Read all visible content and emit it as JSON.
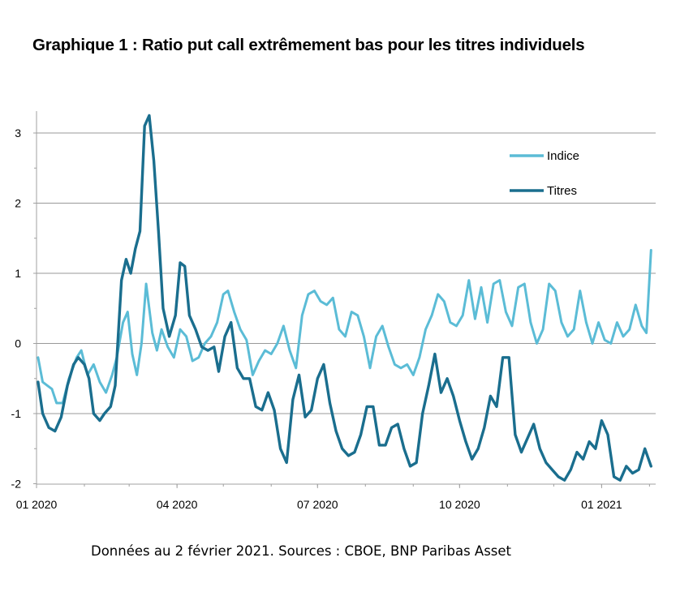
{
  "title": "Graphique 1 : Ratio put call extrêmement bas pour les titres individuels",
  "source": "Données au 2 février 2021. Sources : CBOE, BNP Paribas Asset",
  "colors": {
    "indice": "#5bbcd6",
    "titres": "#1a6e8e",
    "grid": "#999999",
    "axis": "#a0a0a0"
  },
  "chart_data": {
    "type": "line",
    "title": "Graphique 1 : Ratio put call extrêmement bas pour les titres individuels",
    "xlabel": "",
    "ylabel": "",
    "ylim": [
      -2,
      3.3
    ],
    "yticks": [
      3,
      2,
      1,
      0,
      -1,
      -2
    ],
    "ytick_labels": [
      "3",
      "2",
      "1",
      "0",
      "-1",
      "-2"
    ],
    "xlim": [
      "2020-01-01",
      "2021-02-05"
    ],
    "xticks": [
      "2020-01-01",
      "2020-04-01",
      "2020-07-01",
      "2020-10-01",
      "2021-01-01"
    ],
    "xtick_labels": [
      "01 2020",
      "04 2020",
      "07 2020",
      "10 2020",
      "01 2021"
    ],
    "grid": "horizontal",
    "legend": "upper right",
    "series": [
      {
        "name": "Indice",
        "color": "#5bbcd6",
        "points": [
          [
            "2020-01-02",
            -0.2
          ],
          [
            "2020-01-05",
            -0.55
          ],
          [
            "2020-01-08",
            -0.6
          ],
          [
            "2020-01-11",
            -0.65
          ],
          [
            "2020-01-14",
            -0.85
          ],
          [
            "2020-01-18",
            -0.85
          ],
          [
            "2020-01-22",
            -0.5
          ],
          [
            "2020-01-27",
            -0.2
          ],
          [
            "2020-01-30",
            -0.1
          ],
          [
            "2020-02-03",
            -0.45
          ],
          [
            "2020-02-07",
            -0.3
          ],
          [
            "2020-02-11",
            -0.55
          ],
          [
            "2020-02-15",
            -0.7
          ],
          [
            "2020-02-19",
            -0.45
          ],
          [
            "2020-02-22",
            -0.2
          ],
          [
            "2020-02-26",
            0.3
          ],
          [
            "2020-02-29",
            0.45
          ],
          [
            "2020-03-03",
            -0.15
          ],
          [
            "2020-03-06",
            -0.45
          ],
          [
            "2020-03-09",
            0.0
          ],
          [
            "2020-03-12",
            0.85
          ],
          [
            "2020-03-16",
            0.15
          ],
          [
            "2020-03-19",
            -0.1
          ],
          [
            "2020-03-22",
            0.2
          ],
          [
            "2020-03-26",
            -0.05
          ],
          [
            "2020-03-30",
            -0.2
          ],
          [
            "2020-04-03",
            0.2
          ],
          [
            "2020-04-07",
            0.1
          ],
          [
            "2020-04-11",
            -0.25
          ],
          [
            "2020-04-15",
            -0.2
          ],
          [
            "2020-04-19",
            0.0
          ],
          [
            "2020-04-23",
            0.1
          ],
          [
            "2020-04-27",
            0.3
          ],
          [
            "2020-05-01",
            0.7
          ],
          [
            "2020-05-04",
            0.75
          ],
          [
            "2020-05-08",
            0.45
          ],
          [
            "2020-05-12",
            0.2
          ],
          [
            "2020-05-16",
            0.05
          ],
          [
            "2020-05-20",
            -0.45
          ],
          [
            "2020-05-24",
            -0.25
          ],
          [
            "2020-05-28",
            -0.1
          ],
          [
            "2020-06-01",
            -0.15
          ],
          [
            "2020-06-05",
            0.0
          ],
          [
            "2020-06-09",
            0.25
          ],
          [
            "2020-06-13",
            -0.1
          ],
          [
            "2020-06-17",
            -0.35
          ],
          [
            "2020-06-21",
            0.4
          ],
          [
            "2020-06-25",
            0.7
          ],
          [
            "2020-06-29",
            0.75
          ],
          [
            "2020-07-03",
            0.6
          ],
          [
            "2020-07-07",
            0.55
          ],
          [
            "2020-07-11",
            0.65
          ],
          [
            "2020-07-15",
            0.2
          ],
          [
            "2020-07-19",
            0.1
          ],
          [
            "2020-07-23",
            0.45
          ],
          [
            "2020-07-27",
            0.4
          ],
          [
            "2020-07-31",
            0.1
          ],
          [
            "2020-08-04",
            -0.35
          ],
          [
            "2020-08-08",
            0.1
          ],
          [
            "2020-08-12",
            0.25
          ],
          [
            "2020-08-16",
            -0.05
          ],
          [
            "2020-08-20",
            -0.3
          ],
          [
            "2020-08-24",
            -0.35
          ],
          [
            "2020-08-28",
            -0.3
          ],
          [
            "2020-09-01",
            -0.45
          ],
          [
            "2020-09-05",
            -0.2
          ],
          [
            "2020-09-09",
            0.2
          ],
          [
            "2020-09-13",
            0.4
          ],
          [
            "2020-09-17",
            0.7
          ],
          [
            "2020-09-21",
            0.6
          ],
          [
            "2020-09-25",
            0.3
          ],
          [
            "2020-09-29",
            0.25
          ],
          [
            "2020-10-03",
            0.4
          ],
          [
            "2020-10-07",
            0.9
          ],
          [
            "2020-10-11",
            0.35
          ],
          [
            "2020-10-15",
            0.8
          ],
          [
            "2020-10-19",
            0.3
          ],
          [
            "2020-10-23",
            0.85
          ],
          [
            "2020-10-27",
            0.9
          ],
          [
            "2020-10-31",
            0.45
          ],
          [
            "2020-11-04",
            0.25
          ],
          [
            "2020-11-08",
            0.8
          ],
          [
            "2020-11-12",
            0.85
          ],
          [
            "2020-11-16",
            0.3
          ],
          [
            "2020-11-20",
            0.0
          ],
          [
            "2020-11-24",
            0.2
          ],
          [
            "2020-11-28",
            0.85
          ],
          [
            "2020-12-02",
            0.75
          ],
          [
            "2020-12-06",
            0.3
          ],
          [
            "2020-12-10",
            0.1
          ],
          [
            "2020-12-14",
            0.2
          ],
          [
            "2020-12-18",
            0.75
          ],
          [
            "2020-12-22",
            0.3
          ],
          [
            "2020-12-26",
            0.0
          ],
          [
            "2020-12-30",
            0.3
          ],
          [
            "2021-01-03",
            0.05
          ],
          [
            "2021-01-07",
            0.0
          ],
          [
            "2021-01-11",
            0.3
          ],
          [
            "2021-01-15",
            0.1
          ],
          [
            "2021-01-19",
            0.2
          ],
          [
            "2021-01-23",
            0.55
          ],
          [
            "2021-01-27",
            0.25
          ],
          [
            "2021-01-30",
            0.15
          ],
          [
            "2021-02-02",
            1.33
          ]
        ]
      },
      {
        "name": "Titres",
        "color": "#1a6e8e",
        "points": [
          [
            "2020-01-02",
            -0.55
          ],
          [
            "2020-01-05",
            -1.0
          ],
          [
            "2020-01-09",
            -1.2
          ],
          [
            "2020-01-13",
            -1.25
          ],
          [
            "2020-01-17",
            -1.05
          ],
          [
            "2020-01-21",
            -0.6
          ],
          [
            "2020-01-25",
            -0.3
          ],
          [
            "2020-01-28",
            -0.2
          ],
          [
            "2020-02-01",
            -0.3
          ],
          [
            "2020-02-04",
            -0.5
          ],
          [
            "2020-02-07",
            -1.0
          ],
          [
            "2020-02-11",
            -1.1
          ],
          [
            "2020-02-14",
            -1.0
          ],
          [
            "2020-02-18",
            -0.9
          ],
          [
            "2020-02-21",
            -0.6
          ],
          [
            "2020-02-25",
            0.9
          ],
          [
            "2020-02-28",
            1.2
          ],
          [
            "2020-03-02",
            1.0
          ],
          [
            "2020-03-05",
            1.35
          ],
          [
            "2020-03-08",
            1.6
          ],
          [
            "2020-03-11",
            3.1
          ],
          [
            "2020-03-14",
            3.25
          ],
          [
            "2020-03-17",
            2.6
          ],
          [
            "2020-03-20",
            1.6
          ],
          [
            "2020-03-23",
            0.5
          ],
          [
            "2020-03-27",
            0.1
          ],
          [
            "2020-03-31",
            0.4
          ],
          [
            "2020-04-03",
            1.15
          ],
          [
            "2020-04-06",
            1.1
          ],
          [
            "2020-04-09",
            0.4
          ],
          [
            "2020-04-13",
            0.2
          ],
          [
            "2020-04-17",
            -0.05
          ],
          [
            "2020-04-21",
            -0.1
          ],
          [
            "2020-04-25",
            -0.05
          ],
          [
            "2020-04-28",
            -0.4
          ],
          [
            "2020-05-02",
            0.1
          ],
          [
            "2020-05-06",
            0.3
          ],
          [
            "2020-05-10",
            -0.35
          ],
          [
            "2020-05-14",
            -0.5
          ],
          [
            "2020-05-18",
            -0.5
          ],
          [
            "2020-05-22",
            -0.9
          ],
          [
            "2020-05-26",
            -0.95
          ],
          [
            "2020-05-30",
            -0.7
          ],
          [
            "2020-06-03",
            -0.95
          ],
          [
            "2020-06-07",
            -1.5
          ],
          [
            "2020-06-11",
            -1.7
          ],
          [
            "2020-06-15",
            -0.8
          ],
          [
            "2020-06-19",
            -0.45
          ],
          [
            "2020-06-23",
            -1.05
          ],
          [
            "2020-06-27",
            -0.95
          ],
          [
            "2020-07-01",
            -0.5
          ],
          [
            "2020-07-05",
            -0.3
          ],
          [
            "2020-07-09",
            -0.85
          ],
          [
            "2020-07-13",
            -1.25
          ],
          [
            "2020-07-17",
            -1.5
          ],
          [
            "2020-07-21",
            -1.6
          ],
          [
            "2020-07-25",
            -1.55
          ],
          [
            "2020-07-29",
            -1.3
          ],
          [
            "2020-08-02",
            -0.9
          ],
          [
            "2020-08-06",
            -0.9
          ],
          [
            "2020-08-10",
            -1.45
          ],
          [
            "2020-08-14",
            -1.45
          ],
          [
            "2020-08-18",
            -1.2
          ],
          [
            "2020-08-22",
            -1.15
          ],
          [
            "2020-08-26",
            -1.5
          ],
          [
            "2020-08-30",
            -1.75
          ],
          [
            "2020-09-03",
            -1.7
          ],
          [
            "2020-09-07",
            -1.0
          ],
          [
            "2020-09-11",
            -0.6
          ],
          [
            "2020-09-15",
            -0.15
          ],
          [
            "2020-09-19",
            -0.7
          ],
          [
            "2020-09-23",
            -0.5
          ],
          [
            "2020-09-27",
            -0.75
          ],
          [
            "2020-10-01",
            -1.1
          ],
          [
            "2020-10-05",
            -1.4
          ],
          [
            "2020-10-09",
            -1.65
          ],
          [
            "2020-10-13",
            -1.5
          ],
          [
            "2020-10-17",
            -1.2
          ],
          [
            "2020-10-21",
            -0.75
          ],
          [
            "2020-10-25",
            -0.9
          ],
          [
            "2020-10-29",
            -0.2
          ],
          [
            "2020-11-02",
            -0.2
          ],
          [
            "2020-11-06",
            -1.3
          ],
          [
            "2020-11-10",
            -1.55
          ],
          [
            "2020-11-14",
            -1.35
          ],
          [
            "2020-11-18",
            -1.15
          ],
          [
            "2020-11-22",
            -1.5
          ],
          [
            "2020-11-26",
            -1.7
          ],
          [
            "2020-11-30",
            -1.8
          ],
          [
            "2020-12-04",
            -1.9
          ],
          [
            "2020-12-08",
            -1.95
          ],
          [
            "2020-12-12",
            -1.8
          ],
          [
            "2020-12-16",
            -1.55
          ],
          [
            "2020-12-20",
            -1.65
          ],
          [
            "2020-12-24",
            -1.4
          ],
          [
            "2020-12-28",
            -1.5
          ],
          [
            "2021-01-01",
            -1.1
          ],
          [
            "2021-01-05",
            -1.3
          ],
          [
            "2021-01-09",
            -1.9
          ],
          [
            "2021-01-13",
            -1.95
          ],
          [
            "2021-01-17",
            -1.75
          ],
          [
            "2021-01-21",
            -1.85
          ],
          [
            "2021-01-25",
            -1.8
          ],
          [
            "2021-01-29",
            -1.5
          ],
          [
            "2021-02-02",
            -1.75
          ]
        ]
      }
    ]
  }
}
